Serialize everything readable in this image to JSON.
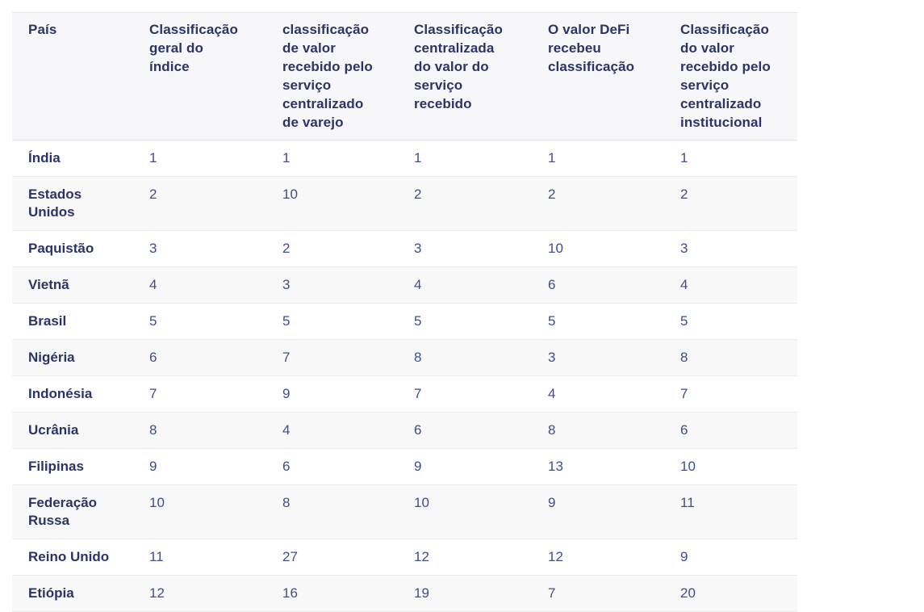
{
  "colors": {
    "header_background": "#f7f7f9",
    "alt_row_background": "#f8f8f9",
    "header_text": "#2b3467",
    "country_text": "#2b3467",
    "value_text": "#3e4e8c",
    "divider": "#ececee"
  },
  "chart_data": {
    "type": "table",
    "columns": [
      "País",
      "Classificação geral do índice",
      "classificação de valor recebido pelo serviço centralizado de varejo",
      "Classificação centralizada do valor do serviço recebido",
      "O valor DeFi recebeu classificação",
      "Classificação do valor recebido pelo serviço centralizado institucional"
    ],
    "rows": [
      [
        "Índia",
        "1",
        "1",
        "1",
        "1",
        "1"
      ],
      [
        "Estados Unidos",
        "2",
        "10",
        "2",
        "2",
        "2"
      ],
      [
        "Paquistão",
        "3",
        "2",
        "3",
        "10",
        "3"
      ],
      [
        "Vietnã",
        "4",
        "3",
        "4",
        "6",
        "4"
      ],
      [
        "Brasil",
        "5",
        "5",
        "5",
        "5",
        "5"
      ],
      [
        "Nigéria",
        "6",
        "7",
        "8",
        "3",
        "8"
      ],
      [
        "Indonésia",
        "7",
        "9",
        "7",
        "4",
        "7"
      ],
      [
        "Ucrânia",
        "8",
        "4",
        "6",
        "8",
        "6"
      ],
      [
        "Filipinas",
        "9",
        "6",
        "9",
        "13",
        "10"
      ],
      [
        "Federação Russa",
        "10",
        "8",
        "10",
        "9",
        "11"
      ],
      [
        "Reino Unido",
        "11",
        "27",
        "12",
        "12",
        "9"
      ],
      [
        "Etiópia",
        "12",
        "16",
        "19",
        "7",
        "20"
      ]
    ]
  }
}
